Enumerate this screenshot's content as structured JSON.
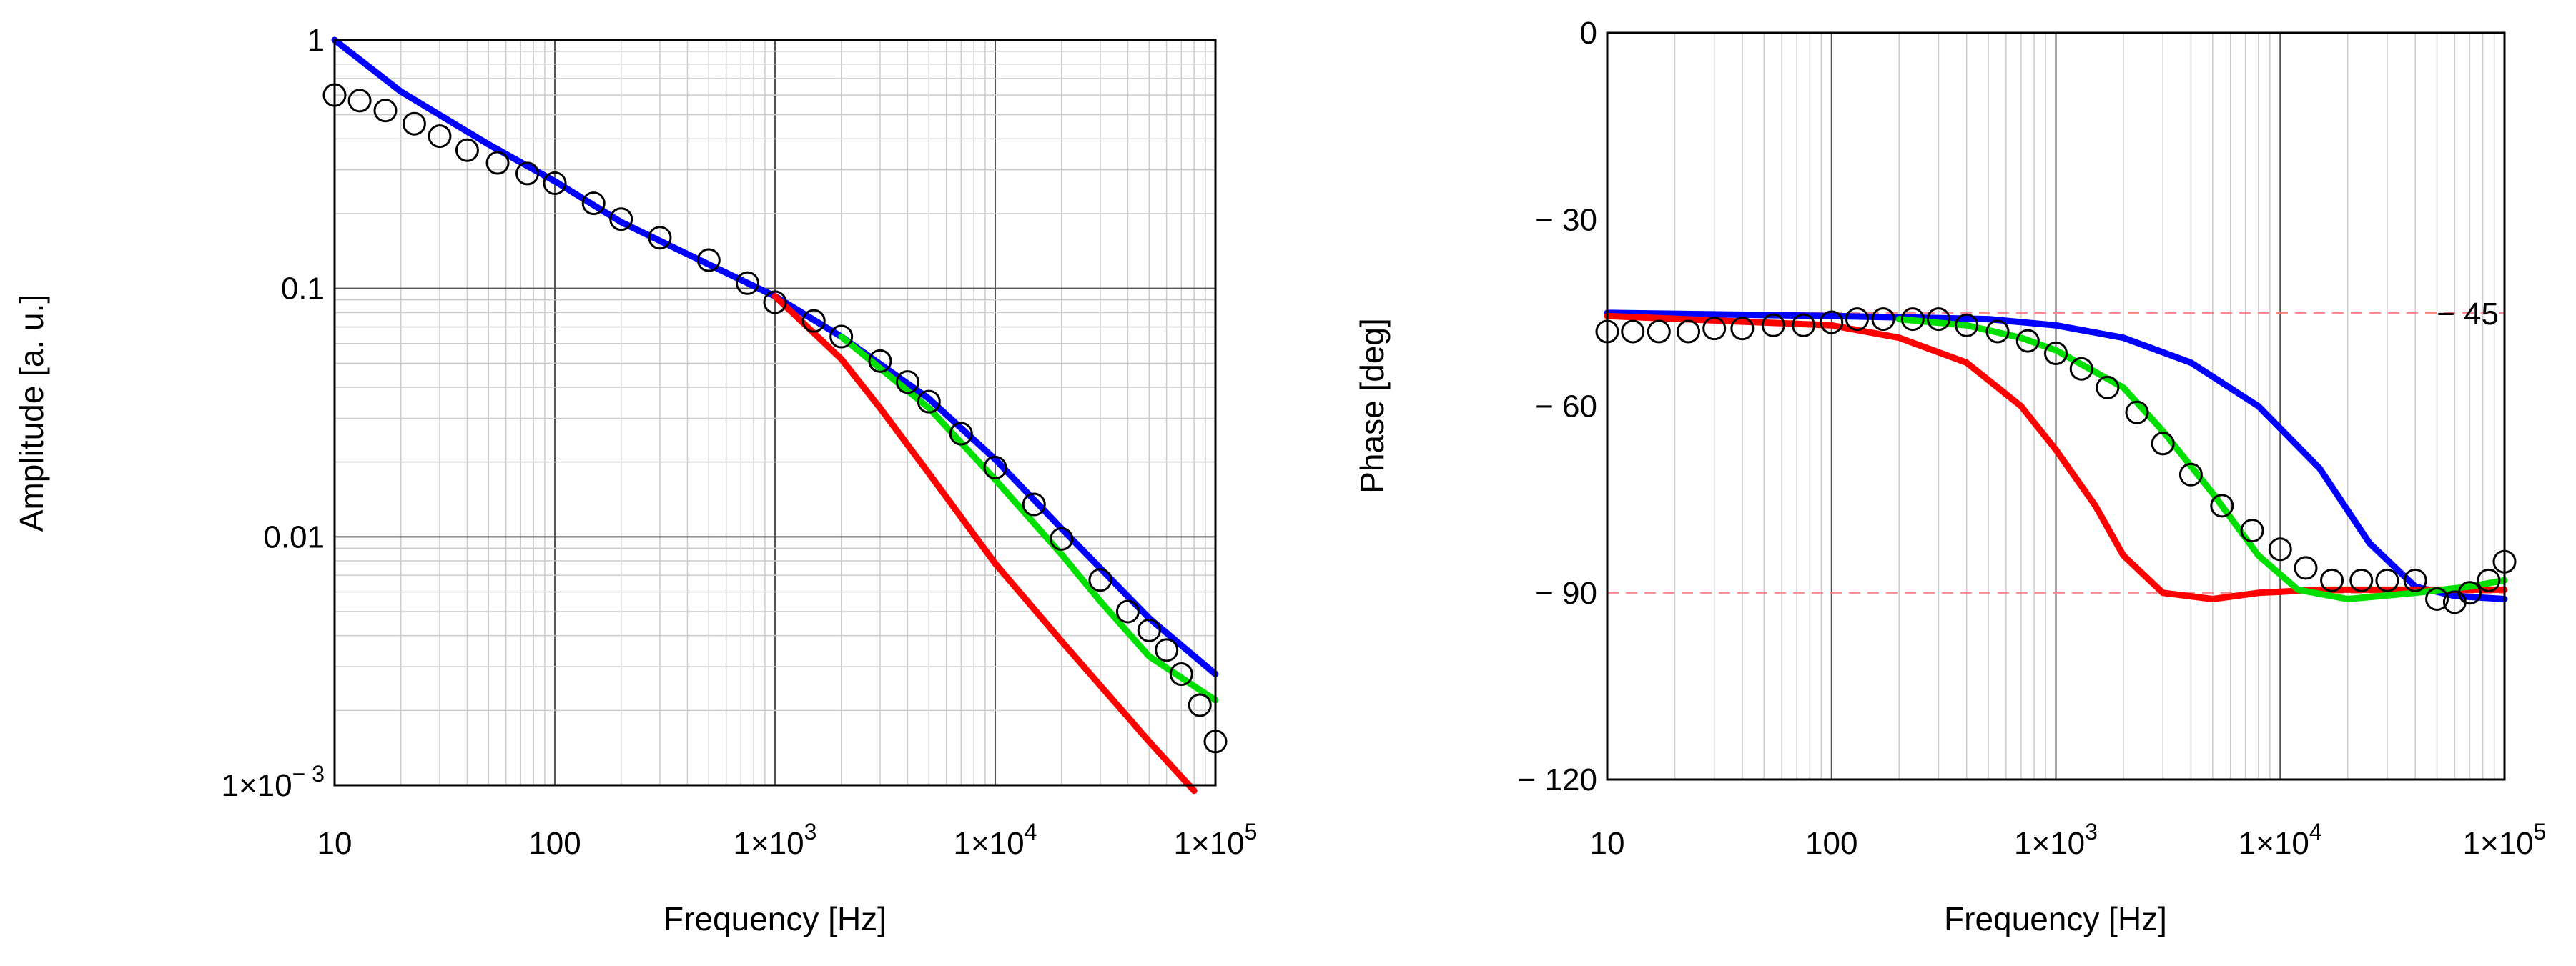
{
  "colors": {
    "blue": "#0000ff",
    "red": "#ff0000",
    "green": "#00e000",
    "markers": "#000000",
    "major_grid": "#555555",
    "minor_grid": "#cccccc",
    "ref_line": "#ff8080"
  },
  "chart_data": [
    {
      "type": "line",
      "xscale": "log",
      "yscale": "log",
      "xlim": [
        10,
        100000
      ],
      "ylim": [
        0.001,
        1
      ],
      "xlabel": "Frequency [Hz]",
      "ylabel": "Amplitude [a. u.]",
      "x_ticks": [
        {
          "value": 10,
          "label": "10"
        },
        {
          "value": 100,
          "label": "100"
        },
        {
          "value": 1000,
          "mant": "1×10",
          "exp": "3"
        },
        {
          "value": 10000,
          "mant": "1×10",
          "exp": "4"
        },
        {
          "value": 100000,
          "mant": "1×10",
          "exp": "5"
        }
      ],
      "y_ticks": [
        {
          "value": 1,
          "label": "1"
        },
        {
          "value": 0.1,
          "label": "0.1"
        },
        {
          "value": 0.01,
          "label": "0.01"
        },
        {
          "value": 0.001,
          "mant": "1×10",
          "exp": "− 3"
        }
      ],
      "grid": true,
      "series": [
        {
          "name": "blue",
          "style": "line",
          "color": "blue",
          "x": [
            10,
            20,
            50,
            100,
            200,
            500,
            1000,
            2000,
            5000,
            10000,
            20000,
            50000,
            100000
          ],
          "y": [
            1.0,
            0.62,
            0.38,
            0.27,
            0.185,
            0.125,
            0.093,
            0.064,
            0.036,
            0.0205,
            0.0108,
            0.0047,
            0.0028
          ]
        },
        {
          "name": "red",
          "style": "line",
          "color": "red",
          "x": [
            1000,
            2000,
            3000,
            5000,
            10000,
            20000,
            50000,
            80000
          ],
          "y": [
            0.093,
            0.052,
            0.033,
            0.018,
            0.0078,
            0.0038,
            0.0015,
            0.00095
          ]
        },
        {
          "name": "green",
          "style": "line",
          "color": "green",
          "x": [
            2000,
            5000,
            10000,
            20000,
            30000,
            50000,
            100000
          ],
          "y": [
            0.064,
            0.033,
            0.017,
            0.0085,
            0.0055,
            0.0033,
            0.0022
          ]
        },
        {
          "name": "measured",
          "style": "markers",
          "color": "markers",
          "x": [
            10,
            13,
            17,
            23,
            30,
            40,
            55,
            75,
            100,
            150,
            200,
            300,
            500,
            750,
            1000,
            1500,
            2000,
            3000,
            4000,
            5000,
            7000,
            10000,
            15000,
            20000,
            30000,
            40000,
            50000,
            60000,
            70000,
            85000,
            100000
          ],
          "y": [
            0.6,
            0.57,
            0.52,
            0.46,
            0.41,
            0.36,
            0.32,
            0.29,
            0.265,
            0.22,
            0.19,
            0.16,
            0.13,
            0.105,
            0.088,
            0.074,
            0.064,
            0.051,
            0.042,
            0.035,
            0.026,
            0.019,
            0.0135,
            0.0098,
            0.0067,
            0.005,
            0.0042,
            0.0035,
            0.0028,
            0.0021,
            0.0015
          ]
        }
      ]
    },
    {
      "type": "line",
      "xscale": "log",
      "yscale": "linear",
      "xlim": [
        10,
        100000
      ],
      "ylim": [
        -120,
        0
      ],
      "xlabel": "Frequency [Hz]",
      "ylabel": "Phase [deg]",
      "x_ticks": [
        {
          "value": 10,
          "label": "10"
        },
        {
          "value": 100,
          "label": "100"
        },
        {
          "value": 1000,
          "mant": "1×10",
          "exp": "3"
        },
        {
          "value": 10000,
          "mant": "1×10",
          "exp": "4"
        },
        {
          "value": 100000,
          "mant": "1×10",
          "exp": "5"
        }
      ],
      "y_ticks": [
        {
          "value": 0,
          "label": "0"
        },
        {
          "value": -30,
          "label": "− 30"
        },
        {
          "value": -60,
          "label": "− 60"
        },
        {
          "value": -90,
          "label": "− 90"
        },
        {
          "value": -120,
          "label": "− 120"
        }
      ],
      "grid": true,
      "reference_lines": [
        {
          "value": -45,
          "label": "− 45"
        },
        {
          "value": -90,
          "label": ""
        }
      ],
      "series": [
        {
          "name": "blue",
          "style": "line",
          "color": "blue",
          "x": [
            10,
            100,
            500,
            1000,
            2000,
            4000,
            8000,
            15000,
            25000,
            40000,
            60000,
            100000
          ],
          "y": [
            -45,
            -45.5,
            -46,
            -47,
            -49,
            -53,
            -60,
            -70,
            -82,
            -89,
            -90.5,
            -91
          ]
        },
        {
          "name": "red",
          "style": "line",
          "color": "red",
          "x": [
            10,
            100,
            200,
            400,
            700,
            1000,
            1500,
            2000,
            3000,
            5000,
            8000,
            15000,
            30000,
            100000
          ],
          "y": [
            -45.5,
            -47,
            -49,
            -53,
            -60,
            -67,
            -76,
            -84,
            -90,
            -91,
            -90,
            -89.5,
            -89.5,
            -89.5
          ]
        },
        {
          "name": "green",
          "style": "line",
          "color": "green",
          "x": [
            200,
            400,
            700,
            1000,
            2000,
            3000,
            5000,
            8000,
            12000,
            20000,
            40000,
            70000,
            100000
          ],
          "y": [
            -46,
            -47,
            -49,
            -51,
            -57,
            -64,
            -74,
            -84,
            -89.5,
            -91,
            -90,
            -89,
            -88
          ]
        },
        {
          "name": "measured",
          "style": "markers",
          "color": "markers",
          "x": [
            10,
            13,
            17,
            23,
            30,
            40,
            55,
            75,
            100,
            130,
            170,
            230,
            300,
            400,
            550,
            750,
            1000,
            1300,
            1700,
            2300,
            3000,
            4000,
            5500,
            7500,
            10000,
            13000,
            17000,
            23000,
            30000,
            40000,
            50000,
            60000,
            70000,
            85000,
            100000
          ],
          "y": [
            -48,
            -48,
            -48,
            -48,
            -47.5,
            -47.5,
            -47,
            -47,
            -46.5,
            -46,
            -46,
            -46,
            -46,
            -47,
            -48,
            -49.5,
            -51.5,
            -54,
            -57,
            -61,
            -66,
            -71,
            -76,
            -80,
            -83,
            -86,
            -88,
            -88,
            -88,
            -88,
            -91,
            -91.5,
            -90,
            -88,
            -85
          ]
        }
      ]
    }
  ]
}
